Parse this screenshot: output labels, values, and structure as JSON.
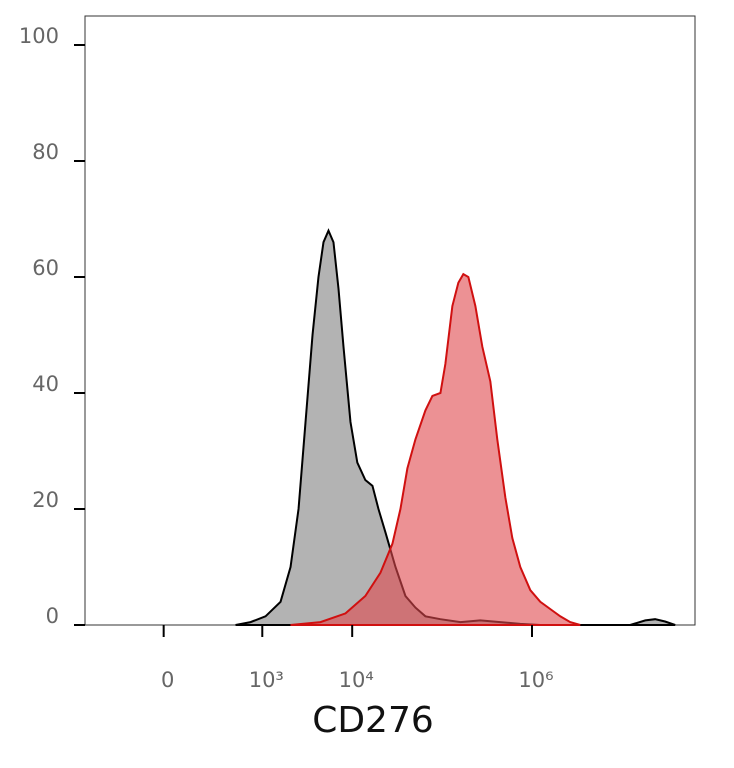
{
  "chart_data": {
    "type": "area",
    "xlabel": "CD276",
    "xlim": [
      -700,
      65000000
    ],
    "ylim": [
      0,
      105
    ],
    "xticks": [
      0,
      {
        "value": 1000,
        "label": "10³"
      },
      {
        "value": 10000,
        "label": "10⁴"
      },
      {
        "value": 1000000,
        "label": "10⁶"
      }
    ],
    "yticks": [
      0,
      20,
      40,
      60,
      80,
      100
    ],
    "series": [
      {
        "color": "#808080",
        "line_color": "#000000",
        "x": [
          640,
          773,
          1087,
          1596,
          2062,
          2530,
          3027,
          3620,
          4216,
          4795,
          5450,
          6190,
          7040,
          8000,
          9570,
          11400,
          14000,
          16800,
          19600,
          23400,
          30300,
          39100,
          50500,
          65200,
          95800,
          160000,
          266000,
          444000,
          741000,
          1236000,
          12360000,
          18200000,
          23400000,
          30200000,
          39100000
        ],
        "values": [
          0,
          0.5,
          1.5,
          4,
          10,
          20,
          35,
          50,
          60,
          66,
          68,
          66,
          58,
          48,
          35,
          28,
          25,
          24,
          20,
          16,
          10,
          5,
          3,
          1.5,
          1,
          0.5,
          0.8,
          0.5,
          0.2,
          0,
          0,
          0.8,
          1,
          0.6,
          0
        ]
      },
      {
        "color": "#e0474c",
        "line_color": "#d01010",
        "x": [
          2060,
          4440,
          8420,
          14000,
          20600,
          28000,
          34400,
          41100,
          50500,
          65200,
          78000,
          95800,
          108700,
          130100,
          151600,
          172300,
          195900,
          234400,
          280000,
          344000,
          411000,
          505000,
          604000,
          741000,
          958000,
          1236000,
          1680000,
          2060000,
          2660000,
          3437000
        ],
        "values": [
          0,
          0.5,
          2,
          5,
          9,
          14,
          20,
          27,
          32,
          37,
          39.5,
          40,
          45,
          55,
          59,
          60.5,
          60,
          55,
          48,
          42,
          32,
          22,
          15,
          10,
          6,
          4,
          2.5,
          1.5,
          0.5,
          0
        ]
      }
    ]
  }
}
